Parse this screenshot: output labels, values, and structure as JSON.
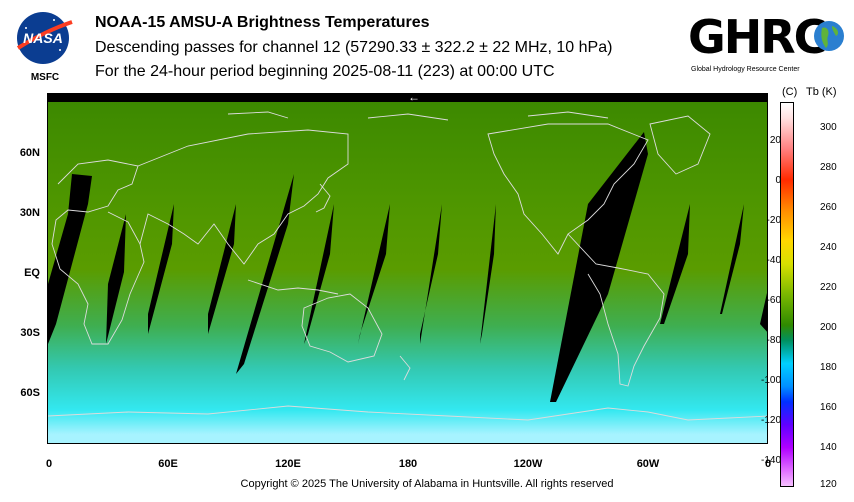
{
  "header": {
    "title": "NOAA-15 AMSU-A Brightness Temperatures",
    "subtitle": "Descending passes for channel 12 (57290.33 ± 322.2 ± 22 MHz, 10 hPa)",
    "period": "For the 24-hour period beginning 2025-08-11 (223) at 00:00 UTC"
  },
  "logos": {
    "nasa_text": "NASA",
    "msfc_text": "MSFC",
    "ghrc_text": "GHRC",
    "ghrc_subtitle": "Global Hydrology Resource Center"
  },
  "map": {
    "lat_labels": [
      "60N",
      "30N",
      "EQ",
      "30S",
      "60S"
    ],
    "lon_labels": [
      "0",
      "60E",
      "120E",
      "180",
      "120W",
      "60W",
      "0"
    ],
    "direction_arrow": "←",
    "background_colors": {
      "north": "#3d8a00",
      "tropics": "#5a9c00",
      "south_mid": "#33c8b0",
      "south_high": "#33e8f0",
      "pole": "#a7f3ff"
    },
    "swath_gap_color": "#000000",
    "coastline_color": "#dcdcdc"
  },
  "colorbar": {
    "celsius_header": "(C)",
    "kelvin_header": "Tb  (K)",
    "celsius_ticks": [
      "20",
      "0",
      "-20",
      "-40",
      "-60",
      "-80",
      "-100",
      "-120",
      "-140"
    ],
    "kelvin_ticks": [
      "300",
      "280",
      "260",
      "240",
      "220",
      "200",
      "180",
      "160",
      "140",
      "120"
    ],
    "range_k": [
      120,
      310
    ]
  },
  "footer": {
    "copyright": "Copyright © 2025 The University of Alabama in Huntsville.  All rights reserved"
  }
}
